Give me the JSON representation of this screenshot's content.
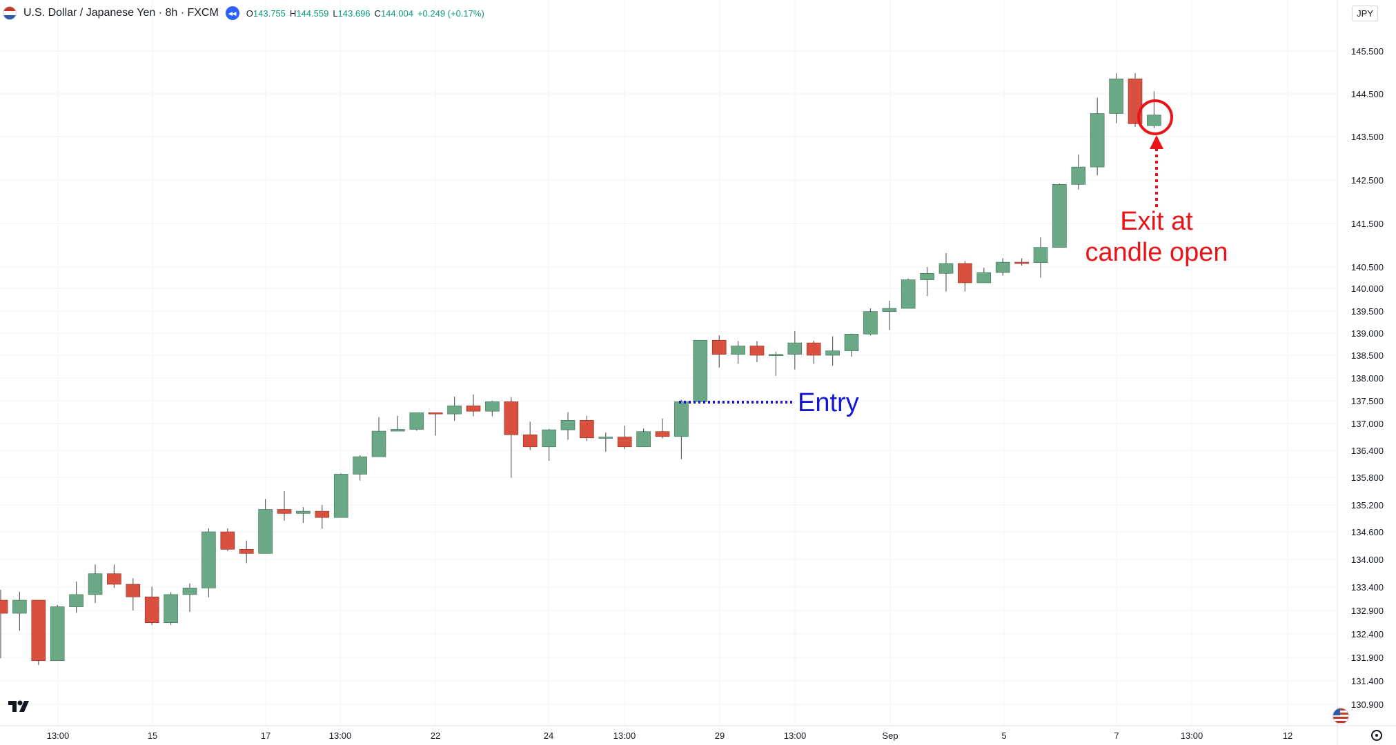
{
  "header": {
    "title": "U.S. Dollar / Japanese Yen · 8h · FXCM",
    "ohlc": {
      "o_label": "O",
      "o": "143.755",
      "h_label": "H",
      "h": "144.559",
      "l_label": "L",
      "l": "143.696",
      "c_label": "C",
      "c": "144.004",
      "change": "+0.249 (+0.17%)"
    },
    "currency_button": "JPY"
  },
  "colors": {
    "bull": "#6aa886",
    "bear": "#d9503f",
    "wick": "#5d6168",
    "grid": "#f0f3fa",
    "axis_text": "#131722",
    "entry": "#1515d4",
    "exit": "#e8141a"
  },
  "chart_data": {
    "type": "candlestick",
    "y_ticks": [
      "145.500",
      "144.500",
      "143.500",
      "142.500",
      "141.500",
      "140.500",
      "140.000",
      "139.500",
      "139.000",
      "138.500",
      "138.000",
      "137.500",
      "137.000",
      "136.400",
      "135.800",
      "135.200",
      "134.600",
      "134.000",
      "133.400",
      "132.900",
      "132.400",
      "131.900",
      "131.400",
      "130.900"
    ],
    "x_ticks": [
      "13:00",
      "15",
      "17",
      "13:00",
      "22",
      "24",
      "13:00",
      "29",
      "13:00",
      "Sep",
      "5",
      "7",
      "13:00",
      "12"
    ],
    "annotations": {
      "entry_label": "Entry",
      "exit_line1": "Exit at",
      "exit_line2": "candle open"
    },
    "candles": [
      {
        "o": 133.12,
        "h": 133.34,
        "l": 131.88,
        "c": 132.84
      },
      {
        "o": 132.84,
        "h": 133.3,
        "l": 132.47,
        "c": 133.12
      },
      {
        "o": 133.12,
        "h": 133.12,
        "l": 131.74,
        "c": 131.83
      },
      {
        "o": 131.83,
        "h": 133.02,
        "l": 131.83,
        "c": 132.98
      },
      {
        "o": 132.98,
        "h": 133.52,
        "l": 132.85,
        "c": 133.24
      },
      {
        "o": 133.24,
        "h": 133.89,
        "l": 133.06,
        "c": 133.69
      },
      {
        "o": 133.69,
        "h": 133.89,
        "l": 133.38,
        "c": 133.46
      },
      {
        "o": 133.46,
        "h": 133.59,
        "l": 132.9,
        "c": 133.19
      },
      {
        "o": 133.19,
        "h": 133.41,
        "l": 132.59,
        "c": 132.64
      },
      {
        "o": 132.64,
        "h": 133.29,
        "l": 132.59,
        "c": 133.24
      },
      {
        "o": 133.24,
        "h": 133.48,
        "l": 132.87,
        "c": 133.38
      },
      {
        "o": 133.38,
        "h": 134.68,
        "l": 133.18,
        "c": 134.6
      },
      {
        "o": 134.6,
        "h": 134.68,
        "l": 134.18,
        "c": 134.22
      },
      {
        "o": 134.22,
        "h": 134.41,
        "l": 133.92,
        "c": 134.13
      },
      {
        "o": 134.13,
        "h": 135.33,
        "l": 134.13,
        "c": 135.1
      },
      {
        "o": 135.1,
        "h": 135.5,
        "l": 134.85,
        "c": 135.01
      },
      {
        "o": 135.01,
        "h": 135.15,
        "l": 134.8,
        "c": 135.06
      },
      {
        "o": 135.06,
        "h": 135.2,
        "l": 134.67,
        "c": 134.92
      },
      {
        "o": 134.92,
        "h": 135.89,
        "l": 134.92,
        "c": 135.87
      },
      {
        "o": 135.87,
        "h": 136.29,
        "l": 135.73,
        "c": 136.26
      },
      {
        "o": 136.26,
        "h": 137.14,
        "l": 136.26,
        "c": 136.83
      },
      {
        "o": 136.83,
        "h": 137.17,
        "l": 136.83,
        "c": 136.87
      },
      {
        "o": 136.87,
        "h": 137.24,
        "l": 136.84,
        "c": 137.24
      },
      {
        "o": 137.24,
        "h": 137.24,
        "l": 136.73,
        "c": 137.21
      },
      {
        "o": 137.21,
        "h": 137.59,
        "l": 137.06,
        "c": 137.39
      },
      {
        "o": 137.39,
        "h": 137.64,
        "l": 137.16,
        "c": 137.27
      },
      {
        "o": 137.27,
        "h": 137.5,
        "l": 137.16,
        "c": 137.48
      },
      {
        "o": 137.48,
        "h": 137.58,
        "l": 135.79,
        "c": 136.75
      },
      {
        "o": 136.75,
        "h": 137.04,
        "l": 136.41,
        "c": 136.48
      },
      {
        "o": 136.48,
        "h": 136.88,
        "l": 136.17,
        "c": 136.86
      },
      {
        "o": 136.86,
        "h": 137.25,
        "l": 136.64,
        "c": 137.07
      },
      {
        "o": 137.07,
        "h": 137.17,
        "l": 136.61,
        "c": 136.68
      },
      {
        "o": 136.68,
        "h": 136.8,
        "l": 136.37,
        "c": 136.7
      },
      {
        "o": 136.7,
        "h": 136.95,
        "l": 136.43,
        "c": 136.48
      },
      {
        "o": 136.48,
        "h": 136.89,
        "l": 136.48,
        "c": 136.82
      },
      {
        "o": 136.82,
        "h": 137.11,
        "l": 136.67,
        "c": 136.71
      },
      {
        "o": 136.71,
        "h": 137.52,
        "l": 136.21,
        "c": 137.48
      },
      {
        "o": 137.48,
        "h": 138.84,
        "l": 137.48,
        "c": 138.84
      },
      {
        "o": 138.84,
        "h": 138.95,
        "l": 138.23,
        "c": 138.52
      },
      {
        "o": 138.52,
        "h": 138.82,
        "l": 138.31,
        "c": 138.71
      },
      {
        "o": 138.71,
        "h": 138.82,
        "l": 138.35,
        "c": 138.5
      },
      {
        "o": 138.5,
        "h": 138.58,
        "l": 138.05,
        "c": 138.52
      },
      {
        "o": 138.52,
        "h": 139.05,
        "l": 138.19,
        "c": 138.78
      },
      {
        "o": 138.78,
        "h": 138.83,
        "l": 138.31,
        "c": 138.5
      },
      {
        "o": 138.5,
        "h": 138.93,
        "l": 138.27,
        "c": 138.6
      },
      {
        "o": 138.6,
        "h": 138.99,
        "l": 138.47,
        "c": 138.98
      },
      {
        "o": 138.98,
        "h": 139.56,
        "l": 138.95,
        "c": 139.49
      },
      {
        "o": 139.49,
        "h": 139.73,
        "l": 139.07,
        "c": 139.56
      },
      {
        "o": 139.56,
        "h": 140.23,
        "l": 139.56,
        "c": 140.2
      },
      {
        "o": 140.2,
        "h": 140.5,
        "l": 139.83,
        "c": 140.35
      },
      {
        "o": 140.35,
        "h": 140.82,
        "l": 139.93,
        "c": 140.58
      },
      {
        "o": 140.58,
        "h": 140.64,
        "l": 139.93,
        "c": 140.13
      },
      {
        "o": 140.13,
        "h": 140.48,
        "l": 140.13,
        "c": 140.37
      },
      {
        "o": 140.37,
        "h": 140.7,
        "l": 140.3,
        "c": 140.61
      },
      {
        "o": 140.61,
        "h": 140.7,
        "l": 140.53,
        "c": 140.6
      },
      {
        "o": 140.6,
        "h": 141.18,
        "l": 140.25,
        "c": 140.95
      },
      {
        "o": 140.95,
        "h": 142.42,
        "l": 140.95,
        "c": 142.4
      },
      {
        "o": 142.4,
        "h": 143.09,
        "l": 142.28,
        "c": 142.8
      },
      {
        "o": 142.8,
        "h": 144.41,
        "l": 142.61,
        "c": 144.04
      },
      {
        "o": 144.04,
        "h": 144.98,
        "l": 143.81,
        "c": 144.85
      },
      {
        "o": 144.85,
        "h": 144.98,
        "l": 143.73,
        "c": 143.8
      },
      {
        "o": 143.755,
        "h": 144.559,
        "l": 143.696,
        "c": 144.004
      }
    ]
  }
}
